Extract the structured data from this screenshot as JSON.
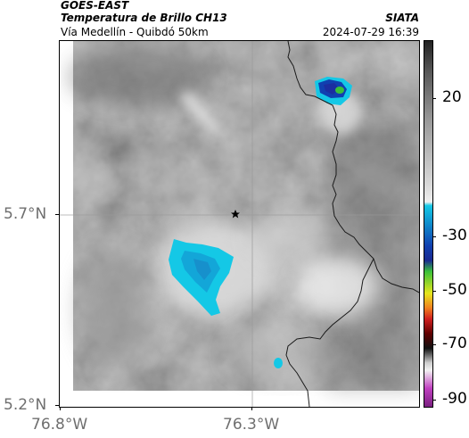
{
  "header": {
    "source": "GOES-EAST",
    "product": "Temperatura de Brillo CH13",
    "organization": "SIATA",
    "subtitle": "Vía Medellín - Quibdó 50km",
    "timestamp": "2024-07-29 16:39"
  },
  "axes": {
    "latitude_ticks": [
      {
        "value": 5.7,
        "label": "5.7°N"
      },
      {
        "value": 5.2,
        "label": "5.2°N"
      }
    ],
    "longitude_ticks": [
      {
        "value": -76.8,
        "label": "76.8°W"
      },
      {
        "value": -76.3,
        "label": "76.3°W"
      }
    ],
    "gridlines": true
  },
  "colorbar": {
    "unit_hint": "°C",
    "ticks": [
      {
        "value": 20,
        "label": "20"
      },
      {
        "value": -30,
        "label": "-30"
      },
      {
        "value": -50,
        "label": "-50"
      },
      {
        "value": -70,
        "label": "-70"
      },
      {
        "value": -90,
        "label": "-90"
      }
    ],
    "colors": {
      "warm_gray_top": "#222222",
      "cold_cyan": "#14c8e6",
      "cold_blue": "#1040b0",
      "green": "#3ac03a",
      "yellow": "#e6e61e",
      "red": "#d02020",
      "magenta": "#c040c0"
    }
  },
  "map": {
    "station_marker": "star-icon",
    "features": [
      "border-line",
      "cold-cloud-cluster"
    ]
  }
}
